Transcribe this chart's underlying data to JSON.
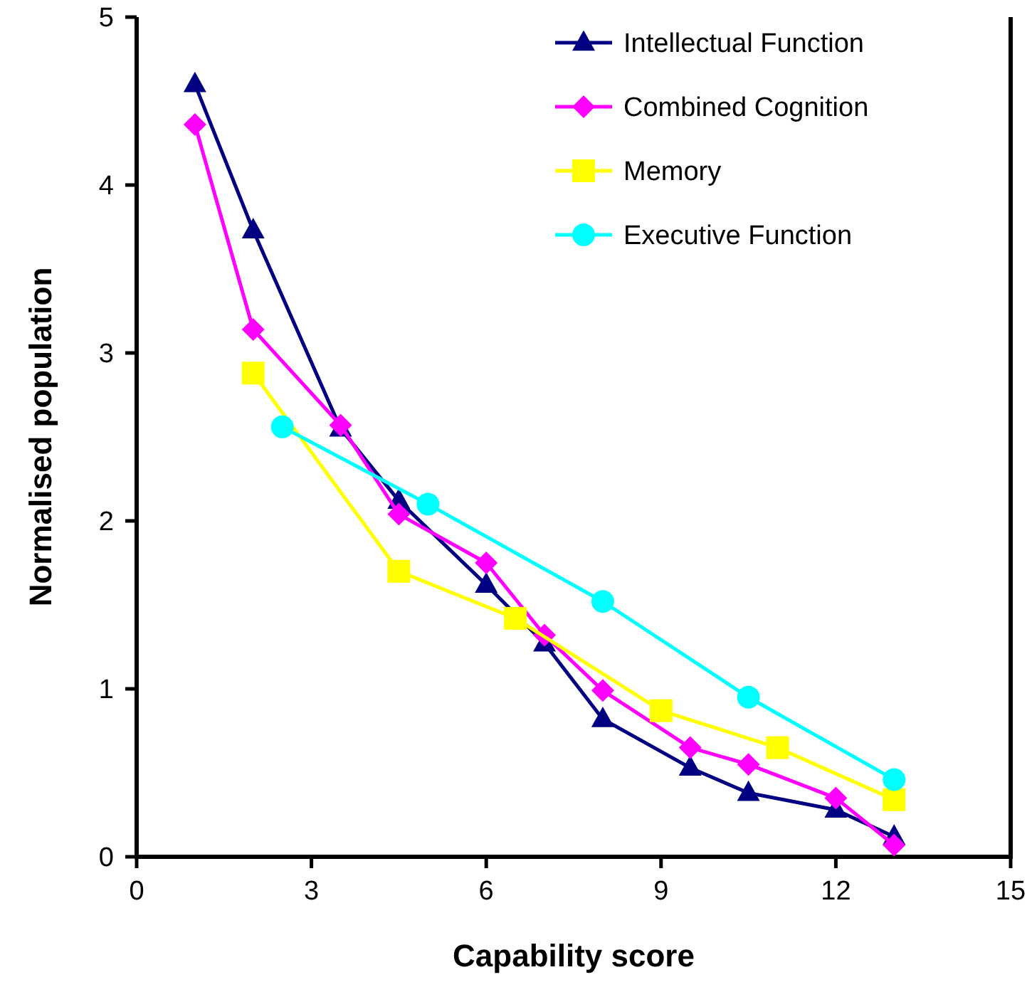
{
  "chart_data": {
    "type": "line",
    "xlabel": "Capability score",
    "ylabel": "Normalised population",
    "xlim": [
      0,
      15
    ],
    "xticks": [
      0,
      3,
      6,
      9,
      12,
      15
    ],
    "ylim": [
      0,
      5
    ],
    "yticks": [
      0,
      1,
      2,
      3,
      4,
      5
    ],
    "grid": false,
    "legend": "top right",
    "series": [
      {
        "name": "Intellectual Function",
        "color": "#000080",
        "marker": "triangle",
        "x": [
          1,
          2,
          3.5,
          4.5,
          6,
          7,
          8,
          9.5,
          10.5,
          12,
          13
        ],
        "values": [
          4.6,
          3.73,
          2.55,
          2.12,
          1.62,
          1.27,
          0.82,
          0.53,
          0.38,
          0.28,
          0.12
        ]
      },
      {
        "name": "Combined Cognition",
        "color": "#ff00ff",
        "marker": "diamond",
        "x": [
          1,
          2,
          3.5,
          4.5,
          6,
          7,
          8,
          9.5,
          10.5,
          12,
          13
        ],
        "values": [
          4.36,
          3.14,
          2.57,
          2.04,
          1.75,
          1.32,
          0.99,
          0.65,
          0.55,
          0.35,
          0.07
        ]
      },
      {
        "name": "Memory",
        "color": "#ffff00",
        "marker": "square",
        "x": [
          2,
          4.5,
          6.5,
          9,
          11,
          13
        ],
        "values": [
          2.88,
          1.7,
          1.42,
          0.87,
          0.65,
          0.34
        ]
      },
      {
        "name": "Executive Function",
        "color": "#00ffff",
        "marker": "circle",
        "x": [
          2.5,
          5,
          8,
          10.5,
          13
        ],
        "values": [
          2.56,
          2.1,
          1.52,
          0.95,
          0.46
        ]
      }
    ]
  }
}
